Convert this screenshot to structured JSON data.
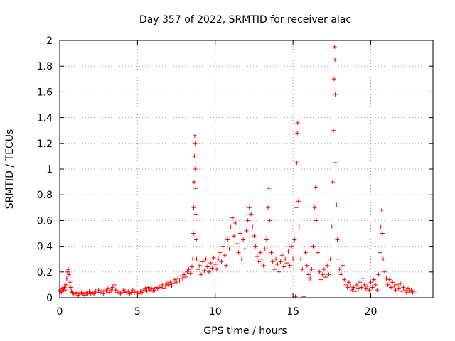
{
  "chart_data": {
    "type": "scatter",
    "title": "Day 357 of 2022, SRMTID for receiver alac",
    "xlabel": "GPS time / hours",
    "ylabel": "SRMTID / TECUs",
    "xlim": [
      0,
      24
    ],
    "ylim": [
      0,
      2
    ],
    "xticks": [
      0,
      5,
      10,
      15,
      20
    ],
    "xtick_labels": [
      "0",
      "5",
      "10",
      "15",
      "20"
    ],
    "yticks": [
      0,
      0.2,
      0.4,
      0.6,
      0.8,
      1,
      1.2,
      1.4,
      1.6,
      1.8,
      2
    ],
    "ytick_labels": [
      "0",
      "0.2",
      "0.4",
      "0.6",
      "0.8",
      "1",
      "1.2",
      "1.4",
      "1.6",
      "1.8",
      "2"
    ],
    "grid": true,
    "marker": "+",
    "series": [
      {
        "name": "SRMTID",
        "color": "#ff0000",
        "points": [
          [
            0.0,
            0.06
          ],
          [
            0.05,
            0.05
          ],
          [
            0.1,
            0.04
          ],
          [
            0.15,
            0.07
          ],
          [
            0.2,
            0.05
          ],
          [
            0.25,
            0.06
          ],
          [
            0.3,
            0.08
          ],
          [
            0.35,
            0.06
          ],
          [
            0.4,
            0.1
          ],
          [
            0.45,
            0.15
          ],
          [
            0.5,
            0.2
          ],
          [
            0.55,
            0.22
          ],
          [
            0.6,
            0.18
          ],
          [
            0.65,
            0.12
          ],
          [
            0.7,
            0.08
          ],
          [
            0.75,
            0.05
          ],
          [
            0.8,
            0.04
          ],
          [
            0.9,
            0.03
          ],
          [
            1.0,
            0.03
          ],
          [
            1.1,
            0.04
          ],
          [
            1.2,
            0.02
          ],
          [
            1.3,
            0.03
          ],
          [
            1.4,
            0.04
          ],
          [
            1.5,
            0.03
          ],
          [
            1.6,
            0.02
          ],
          [
            1.7,
            0.04
          ],
          [
            1.8,
            0.03
          ],
          [
            1.9,
            0.05
          ],
          [
            2.0,
            0.03
          ],
          [
            2.1,
            0.04
          ],
          [
            2.2,
            0.03
          ],
          [
            2.3,
            0.05
          ],
          [
            2.4,
            0.04
          ],
          [
            2.5,
            0.06
          ],
          [
            2.6,
            0.04
          ],
          [
            2.7,
            0.05
          ],
          [
            2.8,
            0.03
          ],
          [
            2.9,
            0.06
          ],
          [
            3.0,
            0.05
          ],
          [
            3.1,
            0.07
          ],
          [
            3.2,
            0.04
          ],
          [
            3.3,
            0.06
          ],
          [
            3.4,
            0.08
          ],
          [
            3.5,
            0.1
          ],
          [
            3.6,
            0.06
          ],
          [
            3.7,
            0.04
          ],
          [
            3.8,
            0.05
          ],
          [
            3.9,
            0.03
          ],
          [
            4.0,
            0.04
          ],
          [
            4.1,
            0.06
          ],
          [
            4.2,
            0.05
          ],
          [
            4.3,
            0.04
          ],
          [
            4.4,
            0.05
          ],
          [
            4.5,
            0.03
          ],
          [
            4.6,
            0.04
          ],
          [
            4.7,
            0.06
          ],
          [
            4.8,
            0.04
          ],
          [
            4.9,
            0.05
          ],
          [
            5.0,
            0.04
          ],
          [
            5.1,
            0.03
          ],
          [
            5.2,
            0.05
          ],
          [
            5.3,
            0.04
          ],
          [
            5.4,
            0.06
          ],
          [
            5.5,
            0.07
          ],
          [
            5.6,
            0.05
          ],
          [
            5.7,
            0.08
          ],
          [
            5.8,
            0.06
          ],
          [
            5.9,
            0.07
          ],
          [
            6.0,
            0.05
          ],
          [
            6.1,
            0.06
          ],
          [
            6.2,
            0.08
          ],
          [
            6.3,
            0.07
          ],
          [
            6.4,
            0.09
          ],
          [
            6.5,
            0.08
          ],
          [
            6.6,
            0.1
          ],
          [
            6.7,
            0.07
          ],
          [
            6.8,
            0.09
          ],
          [
            6.9,
            0.11
          ],
          [
            7.0,
            0.1
          ],
          [
            7.1,
            0.12
          ],
          [
            7.2,
            0.09
          ],
          [
            7.3,
            0.11
          ],
          [
            7.4,
            0.14
          ],
          [
            7.5,
            0.12
          ],
          [
            7.6,
            0.15
          ],
          [
            7.7,
            0.13
          ],
          [
            7.8,
            0.17
          ],
          [
            7.9,
            0.15
          ],
          [
            8.0,
            0.18
          ],
          [
            8.1,
            0.16
          ],
          [
            8.2,
            0.2
          ],
          [
            8.3,
            0.22
          ],
          [
            8.4,
            0.19
          ],
          [
            8.5,
            0.24
          ],
          [
            8.55,
            0.3
          ],
          [
            8.6,
            0.5
          ],
          [
            8.62,
            0.7
          ],
          [
            8.64,
            0.9
          ],
          [
            8.66,
            1.1
          ],
          [
            8.68,
            1.26
          ],
          [
            8.7,
            1.2
          ],
          [
            8.72,
            1.0
          ],
          [
            8.74,
            0.85
          ],
          [
            8.76,
            0.65
          ],
          [
            8.78,
            0.45
          ],
          [
            8.8,
            0.3
          ],
          [
            8.9,
            0.22
          ],
          [
            9.0,
            0.25
          ],
          [
            9.1,
            0.18
          ],
          [
            9.2,
            0.28
          ],
          [
            9.3,
            0.21
          ],
          [
            9.4,
            0.3
          ],
          [
            9.5,
            0.24
          ],
          [
            9.6,
            0.2
          ],
          [
            9.7,
            0.27
          ],
          [
            9.8,
            0.23
          ],
          [
            9.9,
            0.31
          ],
          [
            10.0,
            0.26
          ],
          [
            10.1,
            0.22
          ],
          [
            10.2,
            0.3
          ],
          [
            10.3,
            0.35
          ],
          [
            10.4,
            0.28
          ],
          [
            10.5,
            0.4
          ],
          [
            10.6,
            0.33
          ],
          [
            10.7,
            0.25
          ],
          [
            10.8,
            0.45
          ],
          [
            10.9,
            0.38
          ],
          [
            11.0,
            0.55
          ],
          [
            11.1,
            0.62
          ],
          [
            11.2,
            0.48
          ],
          [
            11.3,
            0.58
          ],
          [
            11.4,
            0.42
          ],
          [
            11.5,
            0.35
          ],
          [
            11.6,
            0.5
          ],
          [
            11.7,
            0.3
          ],
          [
            11.8,
            0.45
          ],
          [
            11.9,
            0.38
          ],
          [
            12.0,
            0.52
          ],
          [
            12.1,
            0.6
          ],
          [
            12.2,
            0.7
          ],
          [
            12.3,
            0.65
          ],
          [
            12.4,
            0.55
          ],
          [
            12.5,
            0.48
          ],
          [
            12.6,
            0.4
          ],
          [
            12.7,
            0.32
          ],
          [
            12.8,
            0.28
          ],
          [
            12.9,
            0.35
          ],
          [
            13.0,
            0.3
          ],
          [
            13.1,
            0.25
          ],
          [
            13.2,
            0.38
          ],
          [
            13.3,
            0.45
          ],
          [
            13.4,
            0.7
          ],
          [
            13.45,
            0.85
          ],
          [
            13.5,
            0.6
          ],
          [
            13.6,
            0.35
          ],
          [
            13.7,
            0.28
          ],
          [
            13.8,
            0.22
          ],
          [
            13.9,
            0.3
          ],
          [
            14.0,
            0.26
          ],
          [
            14.1,
            0.2
          ],
          [
            14.2,
            0.28
          ],
          [
            14.3,
            0.33
          ],
          [
            14.4,
            0.24
          ],
          [
            14.5,
            0.3
          ],
          [
            14.6,
            0.27
          ],
          [
            14.7,
            0.36
          ],
          [
            14.8,
            0.25
          ],
          [
            14.9,
            0.4
          ],
          [
            15.0,
            0.3
          ],
          [
            15.1,
            0.45
          ],
          [
            15.15,
            0.01
          ],
          [
            15.2,
            0.7
          ],
          [
            15.25,
            1.05
          ],
          [
            15.28,
            1.28
          ],
          [
            15.3,
            1.36
          ],
          [
            15.35,
            0.75
          ],
          [
            15.4,
            0.55
          ],
          [
            15.5,
            0.3
          ],
          [
            15.6,
            0.22
          ],
          [
            15.7,
            0.01
          ],
          [
            15.8,
            0.35
          ],
          [
            15.9,
            0.25
          ],
          [
            16.0,
            0.18
          ],
          [
            16.1,
            0.15
          ],
          [
            16.2,
            0.22
          ],
          [
            16.3,
            0.4
          ],
          [
            16.4,
            0.7
          ],
          [
            16.45,
            0.86
          ],
          [
            16.5,
            0.6
          ],
          [
            16.6,
            0.35
          ],
          [
            16.7,
            0.2
          ],
          [
            16.8,
            0.14
          ],
          [
            16.9,
            0.18
          ],
          [
            17.0,
            0.22
          ],
          [
            17.1,
            0.16
          ],
          [
            17.2,
            0.25
          ],
          [
            17.3,
            0.18
          ],
          [
            17.4,
            0.3
          ],
          [
            17.5,
            0.55
          ],
          [
            17.55,
            0.9
          ],
          [
            17.6,
            1.3
          ],
          [
            17.65,
            1.7
          ],
          [
            17.68,
            1.95
          ],
          [
            17.7,
            1.85
          ],
          [
            17.72,
            1.58
          ],
          [
            17.75,
            1.05
          ],
          [
            17.8,
            0.72
          ],
          [
            17.85,
            0.45
          ],
          [
            17.9,
            0.3
          ],
          [
            18.0,
            0.22
          ],
          [
            18.1,
            0.18
          ],
          [
            18.2,
            0.25
          ],
          [
            18.3,
            0.14
          ],
          [
            18.4,
            0.1
          ],
          [
            18.5,
            0.08
          ],
          [
            18.6,
            0.12
          ],
          [
            18.7,
            0.09
          ],
          [
            18.8,
            0.06
          ],
          [
            18.9,
            0.08
          ],
          [
            19.0,
            0.05
          ],
          [
            19.1,
            0.1
          ],
          [
            19.2,
            0.07
          ],
          [
            19.3,
            0.12
          ],
          [
            19.4,
            0.08
          ],
          [
            19.5,
            0.15
          ],
          [
            19.6,
            0.1
          ],
          [
            19.7,
            0.07
          ],
          [
            19.8,
            0.09
          ],
          [
            19.9,
            0.06
          ],
          [
            20.0,
            0.12
          ],
          [
            20.1,
            0.08
          ],
          [
            20.2,
            0.14
          ],
          [
            20.3,
            0.1
          ],
          [
            20.4,
            0.06
          ],
          [
            20.5,
            0.18
          ],
          [
            20.6,
            0.35
          ],
          [
            20.65,
            0.55
          ],
          [
            20.7,
            0.68
          ],
          [
            20.75,
            0.5
          ],
          [
            20.8,
            0.3
          ],
          [
            20.9,
            0.2
          ],
          [
            21.0,
            0.15
          ],
          [
            21.1,
            0.1
          ],
          [
            21.2,
            0.14
          ],
          [
            21.3,
            0.08
          ],
          [
            21.4,
            0.12
          ],
          [
            21.5,
            0.09
          ],
          [
            21.6,
            0.06
          ],
          [
            21.7,
            0.1
          ],
          [
            21.8,
            0.07
          ],
          [
            21.9,
            0.11
          ],
          [
            22.0,
            0.05
          ],
          [
            22.1,
            0.08
          ],
          [
            22.2,
            0.06
          ],
          [
            22.3,
            0.04
          ],
          [
            22.4,
            0.07
          ],
          [
            22.5,
            0.05
          ],
          [
            22.6,
            0.06
          ],
          [
            22.7,
            0.04
          ],
          [
            22.8,
            0.05
          ]
        ]
      }
    ]
  }
}
